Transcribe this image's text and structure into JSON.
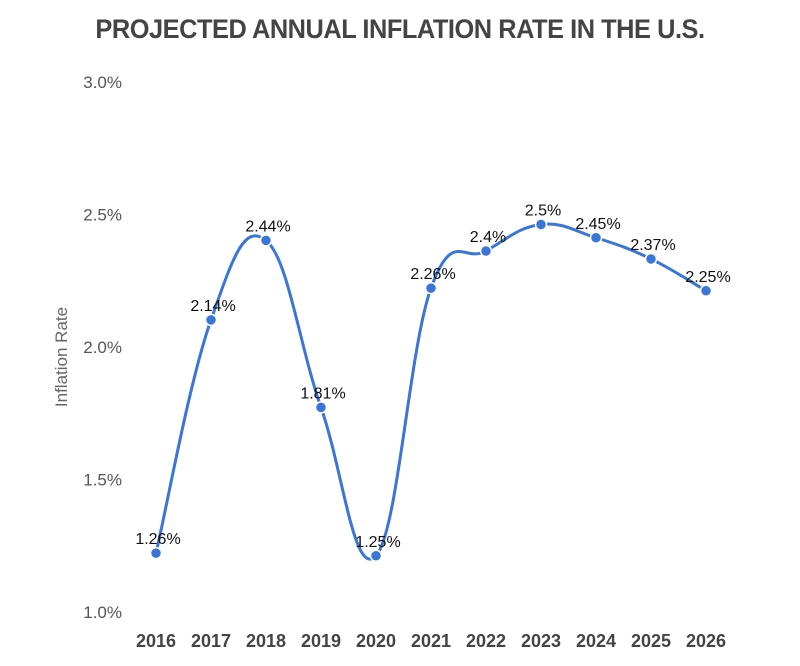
{
  "chart_data": {
    "type": "line",
    "title": "PROJECTED ANNUAL INFLATION RATE IN THE U.S.",
    "xlabel": "",
    "ylabel": "Inflation Rate",
    "categories": [
      "2016",
      "2017",
      "2018",
      "2019",
      "2020",
      "2021",
      "2022",
      "2023",
      "2024",
      "2025",
      "2026"
    ],
    "series": [
      {
        "name": "Inflation Rate",
        "values": [
          1.26,
          2.14,
          2.44,
          1.81,
          1.25,
          2.26,
          2.4,
          2.5,
          2.45,
          2.37,
          2.25
        ],
        "labels": [
          "1.26%",
          "2.14%",
          "2.44%",
          "1.81%",
          "1.25%",
          "2.26%",
          "2.4%",
          "2.5%",
          "2.45%",
          "2.37%",
          "2.25%"
        ],
        "color": "#3a75d8"
      }
    ],
    "ylim": [
      1.0,
      3.0
    ],
    "yticks": [
      "1.0%",
      "1.5%",
      "2.0%",
      "2.5%",
      "3.0%"
    ],
    "ytick_values": [
      1.0,
      1.5,
      2.0,
      2.5,
      3.0
    ],
    "grid": false,
    "legend": "none",
    "smooth": true
  }
}
